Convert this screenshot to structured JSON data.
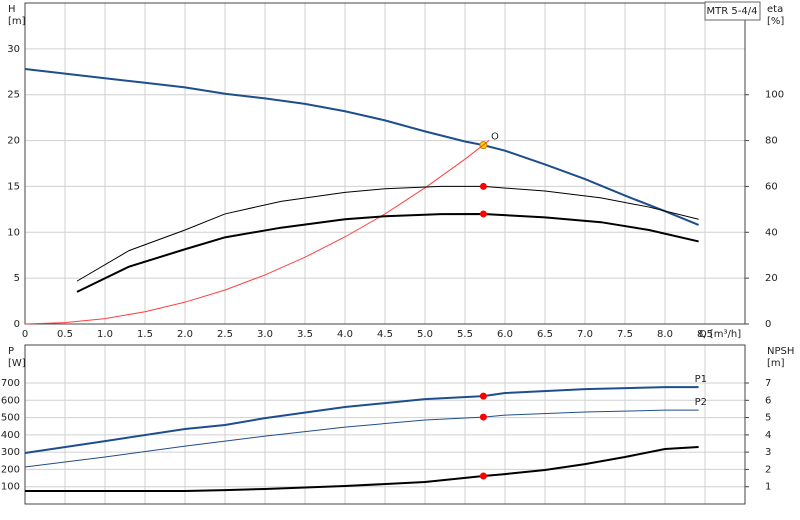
{
  "chart_data": [
    {
      "type": "line",
      "title": "MTR 5-4/4",
      "ylabel": [
        "H",
        "[m]"
      ],
      "y2label": [
        "eta",
        "[%]"
      ],
      "xlabel": "Q [m³/h]",
      "xlim": [
        0,
        9
      ],
      "ylim": [
        0,
        35
      ],
      "y2lim": [
        0,
        140
      ],
      "xticks": [
        0,
        0.5,
        {
          "value": 1,
          "label": "1.0"
        },
        1.5,
        {
          "value": 2,
          "label": "2.0"
        },
        2.5,
        {
          "value": 3,
          "label": "3.0"
        },
        3.5,
        {
          "value": 4,
          "label": "4.0"
        },
        4.5,
        {
          "value": 5,
          "label": "5.0"
        },
        5.5,
        {
          "value": 6,
          "label": "6.0"
        },
        6.5,
        {
          "value": 7,
          "label": "7.0"
        },
        7.5,
        {
          "value": 8,
          "label": "8.0"
        },
        8.5
      ],
      "yticks": [
        0,
        5,
        10,
        15,
        20,
        25,
        30
      ],
      "y2ticks": [
        0,
        20,
        40,
        60,
        80,
        100
      ],
      "grid": true,
      "duty_point_q": 5.73,
      "annotation": {
        "text": "O",
        "x": 5.8,
        "y": 20.2
      },
      "series": [
        {
          "color": "#1f4e8c",
          "line_width": 2,
          "point_color": "#ffd700",
          "x": [
            0,
            0.5,
            1,
            1.5,
            2,
            2.5,
            3,
            3.5,
            4,
            4.5,
            5,
            5.5,
            5.73,
            6,
            6.5,
            7,
            7.5,
            8,
            8.42
          ],
          "values": [
            27.8,
            27.3,
            26.8,
            26.3,
            25.8,
            25.1,
            24.6,
            24.0,
            23.2,
            22.2,
            21.0,
            19.9,
            19.5,
            18.9,
            17.4,
            15.8,
            14.0,
            12.3,
            10.8
          ]
        },
        {
          "color": "#ff4040",
          "line_width": 1,
          "x": [
            0,
            0.5,
            1,
            1.5,
            2,
            2.5,
            3,
            3.5,
            4,
            4.5,
            5,
            5.5,
            5.8
          ],
          "values": [
            0,
            0.15,
            0.59,
            1.34,
            2.38,
            3.71,
            5.35,
            7.28,
            9.5,
            12.0,
            14.85,
            17.97,
            20.0
          ]
        },
        {
          "color": "#000000",
          "line_width": 1,
          "axis": "y2",
          "point_color": "#ff0000",
          "x": [
            0.65,
            1.3,
            2,
            2.5,
            3.2,
            4,
            4.5,
            5.2,
            5.73,
            6.5,
            7.2,
            7.8,
            8.42
          ],
          "values": [
            18.7,
            32,
            41,
            48,
            53.5,
            57.4,
            59,
            60,
            60,
            58,
            55,
            51,
            45.7
          ]
        },
        {
          "color": "#000000",
          "line_width": 2,
          "axis": "y2",
          "point_color": "#ff0000",
          "x": [
            0.65,
            1.3,
            2,
            2.5,
            3.2,
            4,
            4.5,
            5.2,
            5.73,
            6.5,
            7.2,
            7.8,
            8.42
          ],
          "values": [
            14,
            25,
            32.6,
            37.8,
            42,
            45.7,
            47,
            47.9,
            48,
            46.5,
            44.4,
            41,
            36
          ]
        }
      ]
    },
    {
      "type": "line",
      "ylabel": [
        "P",
        "[W]"
      ],
      "y2label": [
        "NPSH",
        "[m]"
      ],
      "xlim": [
        0,
        9
      ],
      "ylim": [
        0,
        920
      ],
      "y2lim": [
        0,
        9.2
      ],
      "yticks": [
        100,
        200,
        300,
        400,
        500,
        600,
        700
      ],
      "y2ticks": [
        1,
        2,
        3,
        4,
        5,
        6,
        7
      ],
      "grid": true,
      "duty_point_q": 5.73,
      "series": [
        {
          "name": "P1",
          "color": "#1f4e8c",
          "line_width": 2,
          "point_color": "#ff0000",
          "x": [
            0,
            1,
            2,
            2.5,
            3,
            4,
            5,
            5.73,
            6,
            7,
            8,
            8.42
          ],
          "values": [
            295,
            364,
            434,
            457,
            497,
            561,
            607,
            624,
            642,
            665,
            676,
            676
          ]
        },
        {
          "name": "P2",
          "color": "#1f4e8c",
          "line_width": 1,
          "point_color": "#ff0000",
          "x": [
            0,
            1,
            2,
            2.5,
            3,
            4,
            5,
            5.73,
            6,
            7,
            8,
            8.42
          ],
          "values": [
            214,
            272,
            335,
            364,
            393,
            445,
            486,
            503,
            514,
            532,
            543,
            543
          ]
        },
        {
          "color": "#000000",
          "line_width": 2,
          "axis": "y2",
          "point_color": "#ff0000",
          "x": [
            0,
            1,
            2,
            2.5,
            3,
            4,
            5,
            5.73,
            6,
            6.5,
            7,
            7.5,
            8,
            8.42
          ],
          "values": [
            0.75,
            0.75,
            0.75,
            0.8,
            0.87,
            1.04,
            1.27,
            1.62,
            1.73,
            1.97,
            2.31,
            2.72,
            3.18,
            3.3
          ]
        }
      ]
    }
  ]
}
